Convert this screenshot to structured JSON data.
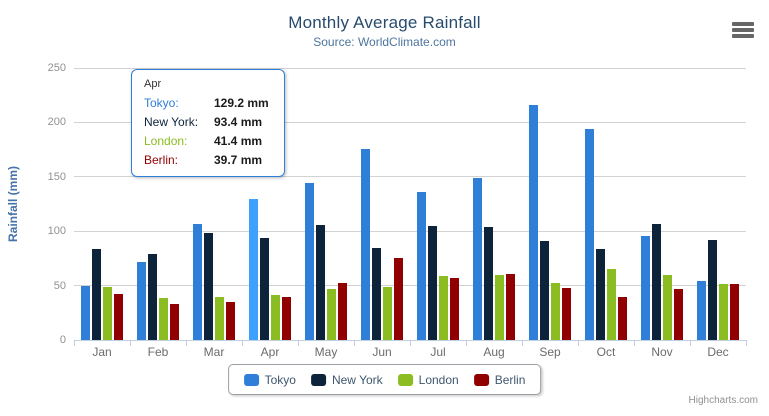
{
  "header": {
    "title": "Monthly Average Rainfall",
    "subtitle": "Source: WorldClimate.com"
  },
  "chart_data": {
    "type": "bar",
    "title": "Monthly Average Rainfall",
    "subtitle": "Source: WorldClimate.com",
    "categories": [
      "Jan",
      "Feb",
      "Mar",
      "Apr",
      "May",
      "Jun",
      "Jul",
      "Aug",
      "Sep",
      "Oct",
      "Nov",
      "Dec"
    ],
    "series": [
      {
        "name": "Tokyo",
        "color": "#2f7ed8",
        "values": [
          49.9,
          71.5,
          106.4,
          129.2,
          144.0,
          176.0,
          135.6,
          148.5,
          216.4,
          194.1,
          95.6,
          54.4
        ]
      },
      {
        "name": "New York",
        "color": "#0d233a",
        "values": [
          83.6,
          78.8,
          98.5,
          93.4,
          106.0,
          84.5,
          105.0,
          104.3,
          91.2,
          83.5,
          106.6,
          92.3
        ]
      },
      {
        "name": "London",
        "color": "#8bbc21",
        "values": [
          48.9,
          38.8,
          39.3,
          41.4,
          47.0,
          48.3,
          59.0,
          59.6,
          52.4,
          65.2,
          59.3,
          51.2
        ]
      },
      {
        "name": "Berlin",
        "color": "#910000",
        "values": [
          42.4,
          33.2,
          34.5,
          39.7,
          52.6,
          75.5,
          57.4,
          60.4,
          47.6,
          39.1,
          46.8,
          51.1
        ]
      }
    ],
    "xlabel": "",
    "ylabel": "Rainfall (mm)",
    "ylim": [
      0,
      250
    ],
    "yticks": [
      0,
      50,
      100,
      150,
      200,
      250
    ],
    "grid": true,
    "legend_position": "bottom-center"
  },
  "tooltip": {
    "header": "Apr",
    "hover_category": "Apr",
    "hover_series": "Tokyo",
    "border_color": "#2f7ed8",
    "rows": [
      {
        "name": "Tokyo:",
        "value": "129.2 mm",
        "color": "#2f7ed8"
      },
      {
        "name": "New York:",
        "value": "93.4 mm",
        "color": "#0d233a"
      },
      {
        "name": "London:",
        "value": "41.4 mm",
        "color": "#8bbc21"
      },
      {
        "name": "Berlin:",
        "value": "39.7 mm",
        "color": "#910000"
      }
    ]
  },
  "colors": {
    "title": "#274b6d",
    "subtitle": "#4d759e",
    "yaxis_title": "#4572A7",
    "grid_line": "#d2d2d2",
    "axis_line": "#c0d0e0"
  },
  "credits": {
    "label": "Highcharts.com"
  }
}
